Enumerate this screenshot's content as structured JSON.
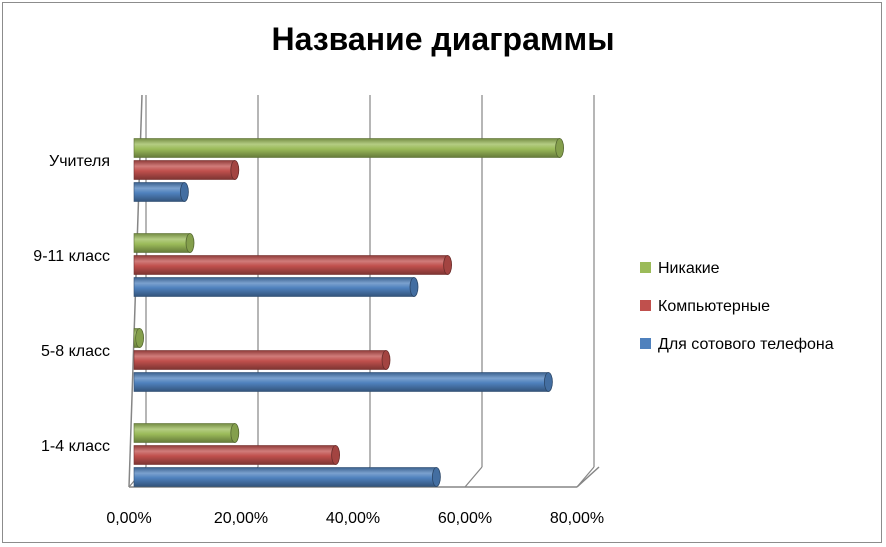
{
  "chart_data": {
    "type": "bar",
    "orientation": "horizontal",
    "title": "Название диаграммы",
    "categories": [
      "1-4 класс",
      "5-8 класс",
      "9-11 класс",
      "Учителя"
    ],
    "series": [
      {
        "name": "Для сотового телефона",
        "color": "#4f81bd",
        "values": [
          0.54,
          0.74,
          0.5,
          0.09
        ]
      },
      {
        "name": "Компьютерные",
        "color": "#c0504d",
        "values": [
          0.36,
          0.45,
          0.56,
          0.18
        ]
      },
      {
        "name": "Никакие",
        "color": "#9bbb59",
        "values": [
          0.18,
          0.01,
          0.1,
          0.76
        ]
      }
    ],
    "xlim": [
      0,
      0.8
    ],
    "xticks": [
      "0,00%",
      "20,00%",
      "40,00%",
      "60,00%",
      "80,00%"
    ],
    "grid": true,
    "legend": "right"
  }
}
